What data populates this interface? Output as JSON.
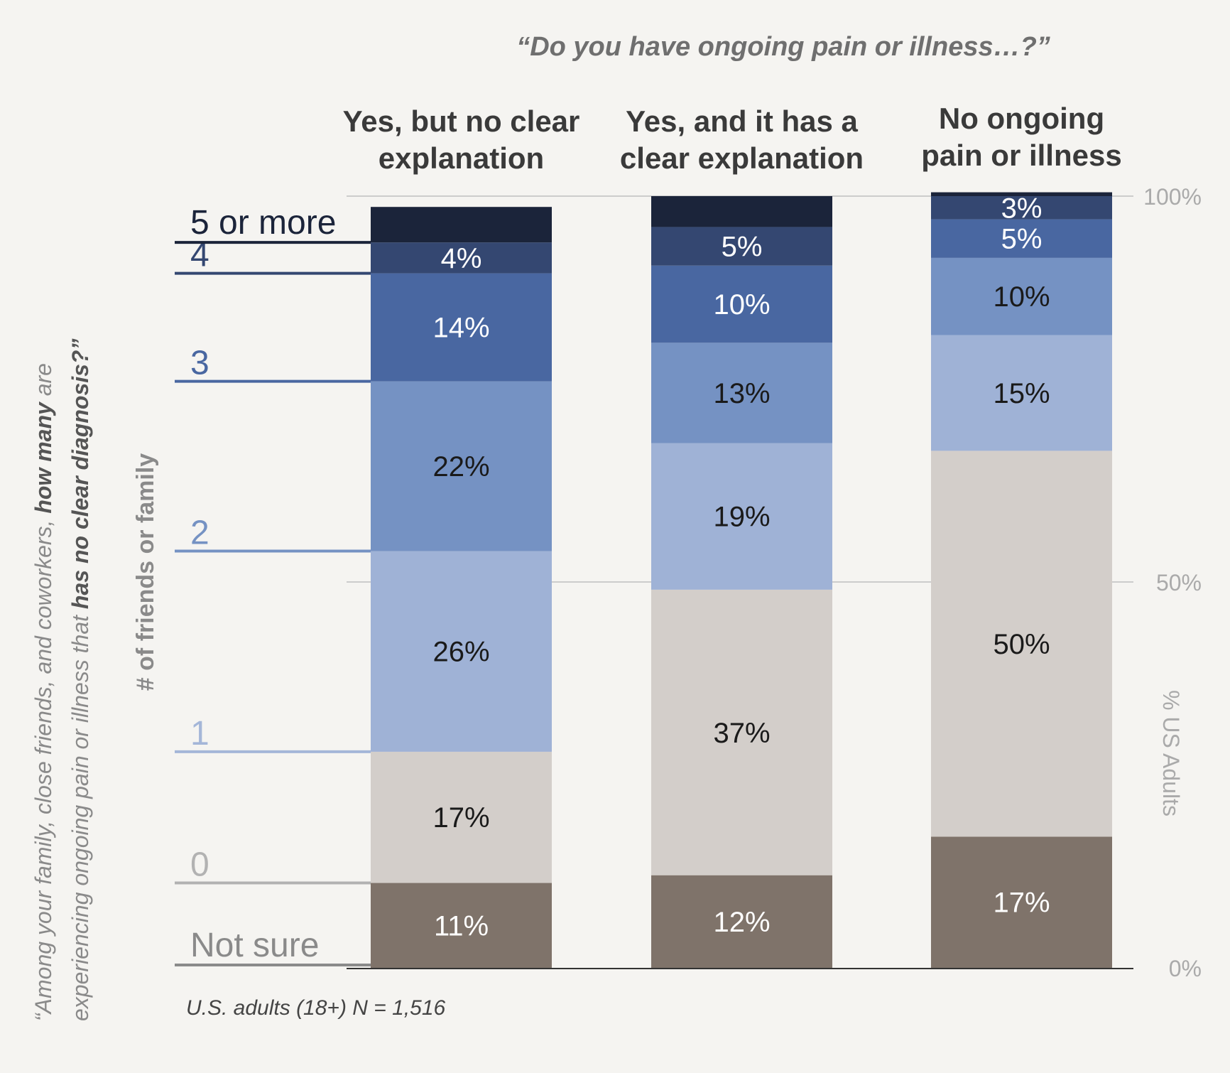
{
  "chart_data": {
    "type": "bar",
    "stacked": true,
    "subtitle": "“Do you have ongoing pain or illness…?”",
    "categories": [
      "Yes, but no clear explanation",
      "Yes, and it has a clear explanation",
      "No ongoing pain or illness"
    ],
    "column_headers": [
      [
        "Yes, but no clear",
        "explanation"
      ],
      [
        "Yes, and it has a",
        "clear explanation"
      ],
      [
        "No ongoing",
        "pain or illness"
      ]
    ],
    "series": [
      {
        "name": "Not sure",
        "color": "#7f736a",
        "label_color": "#ffffff",
        "values": [
          11,
          12,
          17
        ],
        "labels": [
          "11%",
          "12%",
          "17%"
        ]
      },
      {
        "name": "0",
        "color": "#d3ceca",
        "label_color": "#1a1a1a",
        "values": [
          17,
          37,
          50
        ],
        "labels": [
          "17%",
          "37%",
          "50%"
        ]
      },
      {
        "name": "1",
        "color": "#9fb2d6",
        "label_color": "#1a1a1a",
        "values": [
          26,
          19,
          15
        ],
        "labels": [
          "26%",
          "19%",
          "15%"
        ]
      },
      {
        "name": "2",
        "color": "#7592c3",
        "label_color": "#1a1a1a",
        "values": [
          22,
          13,
          10
        ],
        "labels": [
          "22%",
          "13%",
          "10%"
        ]
      },
      {
        "name": "3",
        "color": "#4967a1",
        "label_color": "#ffffff",
        "values": [
          14,
          10,
          5
        ],
        "labels": [
          "14%",
          "10%",
          "5%"
        ]
      },
      {
        "name": "4",
        "color": "#344771",
        "label_color": "#ffffff",
        "values": [
          4,
          5,
          3
        ],
        "labels": [
          "4%",
          "5%",
          "3%"
        ]
      },
      {
        "name": "5 or more",
        "color": "#1b243a",
        "label_color": "#ffffff",
        "values": [
          4.6,
          4,
          0.5
        ],
        "labels": [
          "",
          "",
          ""
        ]
      }
    ],
    "legend_colors": {
      "5 or more": "#1b243a",
      "4": "#344771",
      "3": "#4967a1",
      "2": "#7592c3",
      "1": "#a4b6d8",
      "0": "#b2b2b2",
      "Not sure": "#8a8a8a"
    },
    "y_ticks": [
      "0%",
      "50%",
      "100%"
    ],
    "ylabel": "% US Adults",
    "ylim": [
      0,
      100
    ],
    "xlabel": "# of friends or family",
    "question": {
      "part1": "“Among your family, close friends, and coworkers, ",
      "part1_bold": "how many",
      "part1_end": " are",
      "part2": "experiencing ongoing pain or illness that ",
      "part2_bold": "has no clear diagnosis?”"
    },
    "note": "U.S. adults (18+) N = 1,516",
    "grid": true
  }
}
